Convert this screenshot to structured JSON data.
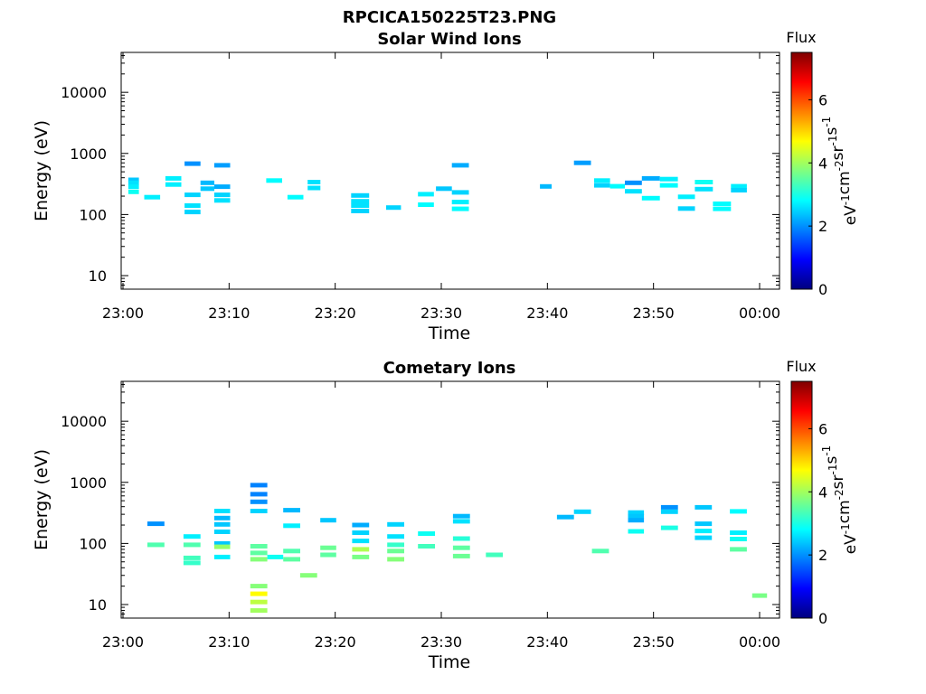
{
  "figure_title": "RPCICA150225T23.PNG",
  "colorbar": {
    "label": "Flux",
    "unit_parts": [
      "eV",
      "-1",
      "cm",
      "-2",
      "sr",
      "-1",
      "s",
      "-1"
    ],
    "range": [
      0,
      7.5
    ],
    "ticks": [
      "0",
      "2",
      "4",
      "6"
    ],
    "colormap": "jet"
  },
  "chart_data": [
    {
      "type": "heatmap",
      "title": "Solar Wind Ions",
      "xlabel": "Time",
      "ylabel": "Energy (eV)",
      "x_ticks": [
        "23:00",
        "23:10",
        "23:20",
        "23:30",
        "23:40",
        "23:50",
        "00:00"
      ],
      "x_range_min": [
        0,
        61.5
      ],
      "y_ticks": [
        "10",
        "100",
        "1000",
        "10000"
      ],
      "y_scale": "log",
      "ylim": [
        6,
        45000
      ],
      "flux_range": [
        0,
        7.5
      ],
      "cells": [
        [
          0.5,
          1.5,
          370,
          2.4
        ],
        [
          0.5,
          1.5,
          330,
          2.6
        ],
        [
          0.5,
          1.5,
          285,
          2.7
        ],
        [
          0.5,
          1.5,
          235,
          2.9
        ],
        [
          2.0,
          3.5,
          192,
          2.7
        ],
        [
          4.0,
          5.5,
          390,
          2.7
        ],
        [
          4.0,
          5.5,
          310,
          2.7
        ],
        [
          5.8,
          7.3,
          680,
          2.0
        ],
        [
          5.8,
          7.3,
          210,
          2.5
        ],
        [
          5.8,
          7.3,
          140,
          2.6
        ],
        [
          5.8,
          7.3,
          110,
          2.5
        ],
        [
          7.3,
          8.6,
          330,
          2.3
        ],
        [
          7.3,
          8.6,
          265,
          2.4
        ],
        [
          8.6,
          10.1,
          640,
          2.1
        ],
        [
          8.6,
          10.1,
          285,
          2.2
        ],
        [
          8.6,
          10.1,
          210,
          2.5
        ],
        [
          8.6,
          10.1,
          170,
          2.6
        ],
        [
          13.5,
          15.0,
          360,
          2.8
        ],
        [
          15.5,
          17.0,
          192,
          2.8
        ],
        [
          17.4,
          18.6,
          340,
          2.6
        ],
        [
          17.4,
          18.6,
          272,
          2.6
        ],
        [
          21.5,
          23.2,
          205,
          2.5
        ],
        [
          21.5,
          23.2,
          165,
          2.6
        ],
        [
          21.5,
          23.2,
          140,
          2.6
        ],
        [
          21.5,
          23.2,
          114,
          2.5
        ],
        [
          24.8,
          26.2,
          130,
          2.5
        ],
        [
          27.8,
          29.3,
          215,
          2.7
        ],
        [
          27.8,
          29.3,
          145,
          2.8
        ],
        [
          29.5,
          31.0,
          265,
          2.4
        ],
        [
          31.0,
          32.6,
          640,
          2.2
        ],
        [
          31.0,
          32.6,
          230,
          2.5
        ],
        [
          31.0,
          32.6,
          160,
          2.7
        ],
        [
          31.0,
          32.6,
          124,
          2.8
        ],
        [
          39.3,
          40.4,
          288,
          2.3
        ],
        [
          42.5,
          44.1,
          700,
          2.1
        ],
        [
          44.4,
          45.9,
          360,
          2.7
        ],
        [
          44.4,
          45.9,
          300,
          2.5
        ],
        [
          45.9,
          47.3,
          290,
          2.8
        ],
        [
          47.3,
          48.9,
          330,
          2.0
        ],
        [
          47.3,
          48.9,
          240,
          2.6
        ],
        [
          48.9,
          50.6,
          390,
          2.2
        ],
        [
          48.9,
          50.6,
          185,
          2.8
        ],
        [
          50.6,
          52.3,
          380,
          2.7
        ],
        [
          50.6,
          52.3,
          300,
          2.8
        ],
        [
          52.3,
          53.9,
          195,
          2.7
        ],
        [
          52.3,
          53.9,
          125,
          2.5
        ],
        [
          53.9,
          55.6,
          340,
          2.9
        ],
        [
          53.9,
          55.6,
          260,
          2.6
        ],
        [
          55.6,
          57.3,
          150,
          2.8
        ],
        [
          55.6,
          57.3,
          124,
          2.8
        ],
        [
          57.3,
          58.8,
          290,
          2.7
        ],
        [
          57.3,
          58.8,
          250,
          2.5
        ]
      ]
    },
    {
      "type": "heatmap",
      "title": "Cometary Ions",
      "xlabel": "Time",
      "ylabel": "Energy (eV)",
      "x_ticks": [
        "23:00",
        "23:10",
        "23:20",
        "23:30",
        "23:40",
        "23:50",
        "00:00"
      ],
      "x_range_min": [
        0,
        61.5
      ],
      "y_ticks": [
        "10",
        "100",
        "1000",
        "10000"
      ],
      "y_scale": "log",
      "ylim": [
        6,
        45000
      ],
      "flux_range": [
        0,
        7.5
      ],
      "cells": [
        [
          2.3,
          3.9,
          210,
          2.0
        ],
        [
          2.3,
          3.9,
          95,
          3.4
        ],
        [
          5.7,
          7.3,
          130,
          2.7
        ],
        [
          5.7,
          7.3,
          95,
          3.4
        ],
        [
          5.7,
          7.3,
          58,
          3.3
        ],
        [
          5.7,
          7.3,
          48,
          3.2
        ],
        [
          8.6,
          10.1,
          340,
          2.6
        ],
        [
          8.6,
          10.1,
          260,
          2.3
        ],
        [
          8.6,
          10.1,
          205,
          2.4
        ],
        [
          8.6,
          10.1,
          155,
          2.5
        ],
        [
          8.6,
          10.1,
          100,
          2.4
        ],
        [
          8.6,
          10.1,
          88,
          3.9
        ],
        [
          8.6,
          10.1,
          60,
          2.7
        ],
        [
          12.0,
          13.6,
          900,
          1.9
        ],
        [
          12.0,
          13.6,
          640,
          1.9
        ],
        [
          12.0,
          13.6,
          480,
          2.0
        ],
        [
          12.0,
          13.6,
          340,
          2.5
        ],
        [
          12.0,
          13.6,
          90,
          3.5
        ],
        [
          12.0,
          13.6,
          70,
          3.5
        ],
        [
          12.0,
          13.6,
          55,
          3.8
        ],
        [
          12.0,
          13.6,
          20,
          3.8
        ],
        [
          12.0,
          13.6,
          15,
          4.7
        ],
        [
          12.0,
          13.6,
          11,
          4.2
        ],
        [
          12.0,
          13.6,
          8,
          4.0
        ],
        [
          13.6,
          15.1,
          60,
          2.9
        ],
        [
          15.1,
          16.7,
          350,
          2.3
        ],
        [
          15.1,
          16.7,
          195,
          2.7
        ],
        [
          15.1,
          16.7,
          75,
          3.4
        ],
        [
          15.1,
          16.7,
          55,
          3.5
        ],
        [
          16.7,
          18.3,
          30,
          3.8
        ],
        [
          18.6,
          20.1,
          240,
          2.4
        ],
        [
          18.6,
          20.1,
          85,
          3.6
        ],
        [
          18.6,
          20.1,
          65,
          3.5
        ],
        [
          21.6,
          23.2,
          200,
          2.2
        ],
        [
          21.6,
          23.2,
          150,
          2.5
        ],
        [
          21.6,
          23.2,
          110,
          2.6
        ],
        [
          21.6,
          23.2,
          80,
          4.1
        ],
        [
          21.6,
          23.2,
          60,
          3.7
        ],
        [
          24.9,
          26.5,
          205,
          2.5
        ],
        [
          24.9,
          26.5,
          130,
          2.6
        ],
        [
          24.9,
          26.5,
          95,
          3.2
        ],
        [
          24.9,
          26.5,
          75,
          3.6
        ],
        [
          24.9,
          26.5,
          55,
          3.8
        ],
        [
          27.8,
          29.4,
          145,
          2.9
        ],
        [
          27.8,
          29.4,
          90,
          3.3
        ],
        [
          31.1,
          32.7,
          280,
          2.3
        ],
        [
          31.1,
          32.7,
          230,
          2.6
        ],
        [
          31.1,
          32.7,
          120,
          3.1
        ],
        [
          31.1,
          32.7,
          85,
          3.5
        ],
        [
          31.1,
          32.7,
          62,
          3.6
        ],
        [
          34.2,
          35.8,
          65,
          3.3
        ],
        [
          40.9,
          42.5,
          270,
          2.3
        ],
        [
          42.5,
          44.1,
          330,
          2.5
        ],
        [
          44.2,
          45.8,
          75,
          3.4
        ],
        [
          47.6,
          49.1,
          320,
          2.5
        ],
        [
          47.6,
          49.1,
          280,
          2.4
        ],
        [
          47.6,
          49.1,
          240,
          2.2
        ],
        [
          47.6,
          49.1,
          158,
          2.9
        ],
        [
          50.7,
          52.3,
          390,
          2.0
        ],
        [
          50.7,
          52.3,
          330,
          2.5
        ],
        [
          50.7,
          52.3,
          180,
          3.0
        ],
        [
          53.9,
          55.5,
          390,
          2.4
        ],
        [
          53.9,
          55.5,
          210,
          2.4
        ],
        [
          53.9,
          55.5,
          160,
          2.7
        ],
        [
          53.9,
          55.5,
          124,
          2.5
        ],
        [
          57.2,
          58.8,
          335,
          2.8
        ],
        [
          57.2,
          58.8,
          150,
          2.7
        ],
        [
          57.2,
          58.8,
          118,
          2.9
        ],
        [
          57.2,
          58.8,
          80,
          3.5
        ],
        [
          59.3,
          60.7,
          14,
          3.7
        ]
      ]
    }
  ]
}
